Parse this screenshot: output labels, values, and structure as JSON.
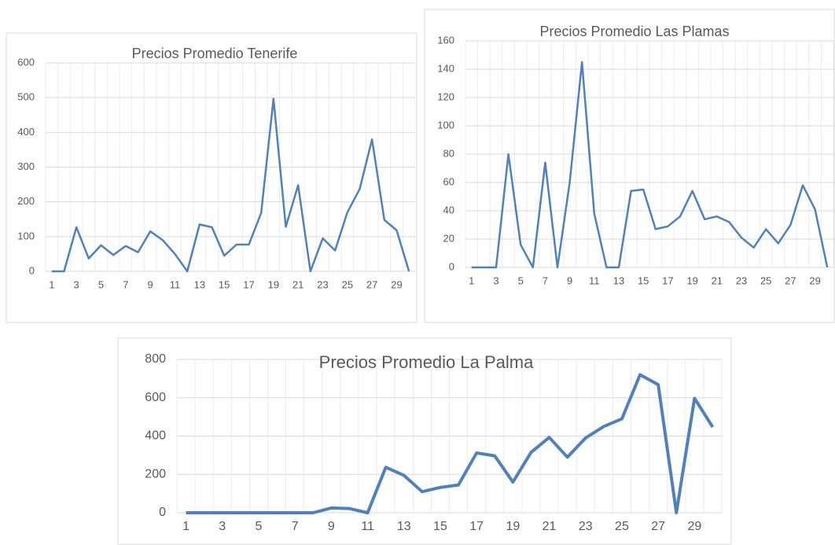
{
  "chart_data": [
    {
      "type": "line",
      "title": "Precios Promedio Tenerife",
      "categories": [
        1,
        null,
        3,
        null,
        5,
        null,
        7,
        null,
        9,
        null,
        11,
        null,
        13,
        null,
        15,
        null,
        17,
        null,
        19,
        null,
        21,
        null,
        23,
        null,
        25,
        null,
        27,
        null,
        29,
        null
      ],
      "series": [
        {
          "name": "Tenerife",
          "color": "#4f81bd",
          "values": [
            0,
            0,
            127,
            37,
            75,
            47,
            73,
            55,
            115,
            90,
            50,
            0,
            135,
            127,
            45,
            77,
            77,
            168,
            497,
            128,
            248,
            0,
            95,
            60,
            170,
            237,
            380,
            148,
            118,
            0
          ]
        }
      ],
      "ylim": [
        0,
        600
      ],
      "yticks": [
        0,
        100,
        200,
        300,
        400,
        500,
        600
      ],
      "grid": true
    },
    {
      "type": "line",
      "title": "Precios Promedio Las Plamas",
      "categories": [
        1,
        null,
        3,
        null,
        5,
        null,
        7,
        null,
        9,
        null,
        11,
        null,
        13,
        null,
        15,
        null,
        17,
        null,
        19,
        null,
        21,
        null,
        23,
        null,
        25,
        null,
        27,
        null,
        29,
        null
      ],
      "series": [
        {
          "name": "Las Plamas",
          "color": "#4f81bd",
          "values": [
            0,
            0,
            0,
            80,
            16,
            0,
            74,
            0,
            60,
            145,
            38,
            0,
            0,
            54,
            55,
            27,
            29,
            36,
            54,
            34,
            36,
            32,
            21,
            14,
            27,
            17,
            30,
            58,
            41,
            0
          ]
        }
      ],
      "ylim": [
        0,
        160
      ],
      "yticks": [
        0,
        20,
        40,
        60,
        80,
        100,
        120,
        140,
        160
      ],
      "grid": true
    },
    {
      "type": "line",
      "title": "Precios Promedio La Palma",
      "categories": [
        1,
        null,
        3,
        null,
        5,
        null,
        7,
        null,
        9,
        null,
        11,
        null,
        13,
        null,
        15,
        null,
        17,
        null,
        19,
        null,
        21,
        null,
        23,
        null,
        25,
        null,
        27,
        null,
        29,
        null
      ],
      "series": [
        {
          "name": "La Palma",
          "color": "#4f81bd",
          "values": [
            0,
            0,
            0,
            0,
            0,
            0,
            0,
            0,
            25,
            22,
            0,
            237,
            195,
            110,
            132,
            145,
            312,
            297,
            160,
            315,
            393,
            290,
            390,
            450,
            490,
            720,
            668,
            0,
            597,
            447
          ]
        }
      ],
      "ylim": [
        0,
        800
      ],
      "yticks": [
        0,
        200,
        400,
        600,
        800
      ],
      "grid": true
    }
  ]
}
